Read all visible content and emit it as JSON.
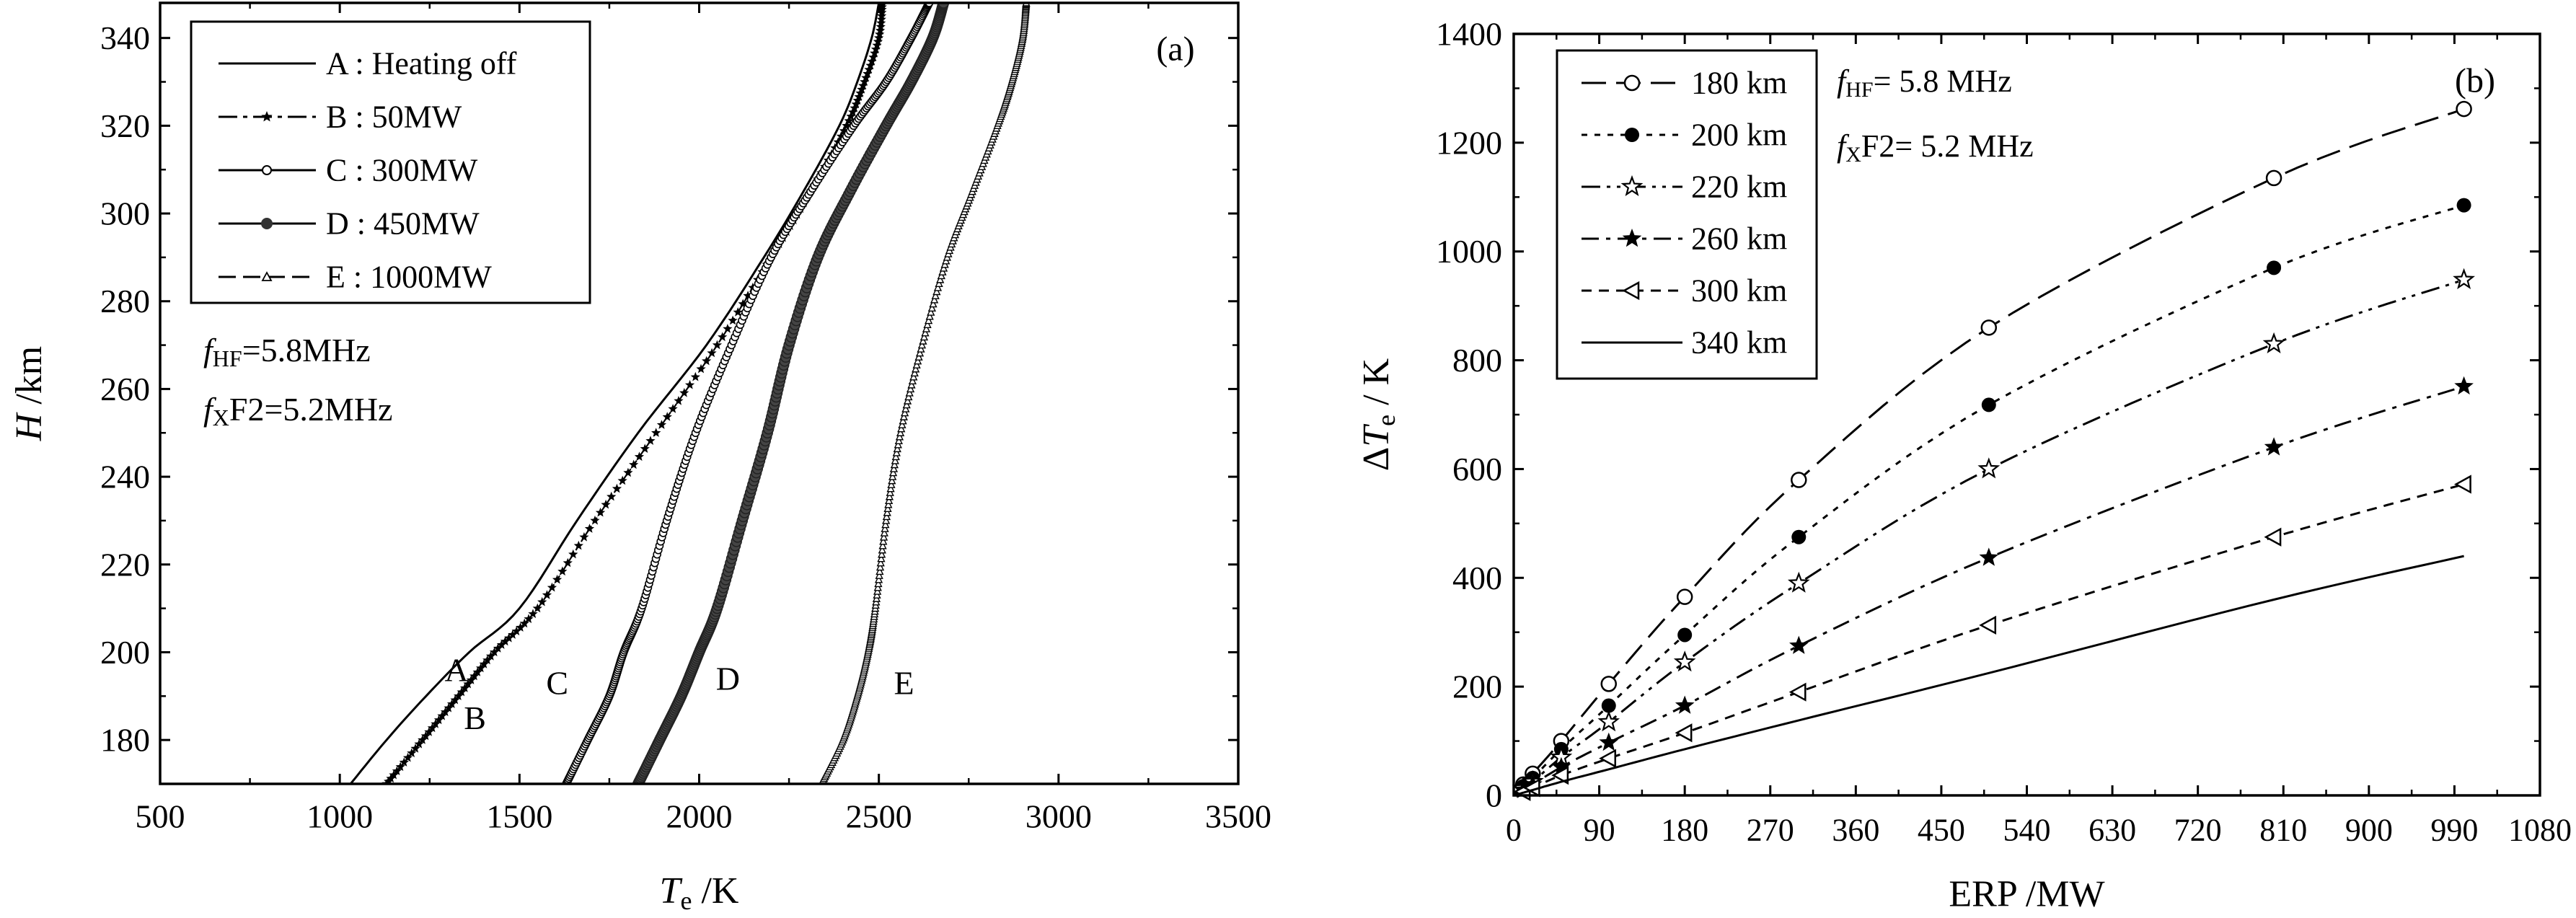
{
  "chart_data": [
    {
      "type": "line",
      "panel_label": "(a)",
      "xlabel": {
        "main": "T",
        "sub": "e",
        "unit": " /K"
      },
      "ylabel": {
        "main": "H",
        "unit": " /km"
      },
      "xlim": [
        500,
        3500
      ],
      "ylim": [
        170,
        348
      ],
      "xticks": [
        500,
        1000,
        1500,
        2000,
        2500,
        3000,
        3500
      ],
      "yticks": [
        180,
        200,
        220,
        240,
        260,
        280,
        300,
        320,
        340
      ],
      "legend_position": "top-left",
      "annotation": [
        {
          "prefix": "f",
          "sub": "HF",
          "suffix": "=5.8MHz"
        },
        {
          "prefix": "f",
          "sub": "X",
          "suffix": "F2=5.2MHz"
        }
      ],
      "series": [
        {
          "key": "A",
          "name": "A : Heating off",
          "curve_label": "A",
          "x": [
            1030,
            1130,
            1240,
            1360,
            1500,
            1660,
            1830,
            2020,
            2180,
            2290,
            2390,
            2440,
            2480,
            2500
          ],
          "y": [
            170,
            180,
            190,
            200,
            210,
            230,
            250,
            270,
            290,
            305,
            320,
            330,
            340,
            348
          ]
        },
        {
          "key": "B",
          "name": "B : 50MW",
          "curve_label": "B",
          "x": [
            1130,
            1230,
            1330,
            1430,
            1550,
            1710,
            1880,
            2050,
            2200,
            2310,
            2410,
            2460,
            2500,
            2510
          ],
          "y": [
            170,
            180,
            190,
            200,
            210,
            230,
            250,
            270,
            290,
            305,
            320,
            330,
            340,
            348
          ]
        },
        {
          "key": "C",
          "name": "C : 300MW",
          "curve_label": "C",
          "x": [
            1630,
            1690,
            1750,
            1790,
            1840,
            1910,
            1990,
            2090,
            2200,
            2310,
            2430,
            2520,
            2590,
            2640
          ],
          "y": [
            170,
            180,
            190,
            200,
            210,
            230,
            250,
            270,
            290,
            305,
            320,
            330,
            340,
            348
          ]
        },
        {
          "key": "D",
          "name": "D : 450MW",
          "curve_label": "D",
          "x": [
            1830,
            1890,
            1950,
            2000,
            2050,
            2120,
            2190,
            2250,
            2330,
            2420,
            2520,
            2590,
            2650,
            2680
          ],
          "y": [
            170,
            180,
            190,
            200,
            210,
            230,
            250,
            270,
            290,
            305,
            320,
            330,
            340,
            348
          ]
        },
        {
          "key": "E",
          "name": "E : 1000MW",
          "curve_label": "E",
          "x": [
            2340,
            2400,
            2440,
            2470,
            2490,
            2520,
            2560,
            2620,
            2690,
            2760,
            2830,
            2870,
            2900,
            2910
          ],
          "y": [
            170,
            180,
            190,
            200,
            210,
            230,
            250,
            270,
            290,
            305,
            320,
            330,
            340,
            348
          ]
        }
      ]
    },
    {
      "type": "line",
      "panel_label": "(b)",
      "xlabel": {
        "main": "ERP /MW"
      },
      "ylabel": {
        "prefix": "Δ",
        "main": "T",
        "sub": "e",
        "unit": " / K"
      },
      "xlim": [
        0,
        1080
      ],
      "ylim": [
        0,
        1400
      ],
      "xticks": [
        0,
        90,
        180,
        270,
        360,
        450,
        540,
        630,
        720,
        810,
        900,
        990,
        1080
      ],
      "yticks": [
        0,
        200,
        400,
        600,
        800,
        1000,
        1200,
        1400
      ],
      "legend_position": "top-left",
      "annotation": [
        {
          "prefix": "f",
          "sub": "HF",
          "suffix": "= 5.8 MHz"
        },
        {
          "prefix": "f",
          "sub": "X",
          "suffix": "F2= 5.2 MHz"
        }
      ],
      "x": [
        0,
        10,
        20,
        50,
        100,
        180,
        300,
        500,
        800,
        1000
      ],
      "series": [
        {
          "name": "180 km",
          "marker": "open-circle",
          "values": [
            0,
            20,
            40,
            100,
            205,
            365,
            580,
            860,
            1135,
            1262
          ]
        },
        {
          "name": "200 km",
          "marker": "filled-circle",
          "values": [
            0,
            17,
            32,
            85,
            165,
            295,
            475,
            718,
            970,
            1085
          ]
        },
        {
          "name": "220 km",
          "marker": "open-star",
          "values": [
            0,
            13,
            25,
            70,
            135,
            245,
            390,
            600,
            830,
            948
          ]
        },
        {
          "name": "260 km",
          "marker": "filled-star",
          "values": [
            0,
            10,
            20,
            52,
            97,
            165,
            275,
            437,
            640,
            752
          ]
        },
        {
          "name": "300 km",
          "marker": "open-triangle-left",
          "values": [
            0,
            7,
            14,
            37,
            68,
            115,
            190,
            313,
            475,
            572
          ]
        },
        {
          "name": "340 km",
          "marker": "none",
          "values": [
            0,
            5,
            10,
            25,
            48,
            85,
            138,
            225,
            360,
            440
          ]
        }
      ]
    }
  ]
}
